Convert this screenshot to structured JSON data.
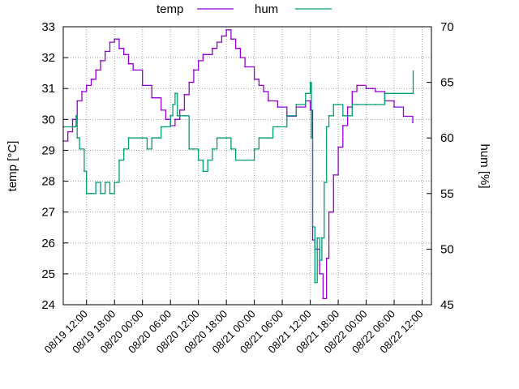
{
  "chart_data": {
    "type": "line",
    "legend_position": "top-center",
    "grid": true,
    "x_axis": {
      "label": "",
      "start": "08/19 07:00",
      "ticks": [
        "08/19 12:00",
        "08/19 18:00",
        "08/20 00:00",
        "08/20 06:00",
        "08/20 12:00",
        "08/20 18:00",
        "08/21 00:00",
        "08/21 06:00",
        "08/21 12:00",
        "08/21 18:00",
        "08/22 00:00",
        "08/22 06:00",
        "08/22 12:00"
      ]
    },
    "y_axis": {
      "label": "temp [°C]",
      "range": [
        24,
        33
      ],
      "ticks": [
        "24",
        "25",
        "26",
        "27",
        "28",
        "29",
        "30",
        "31",
        "32",
        "33"
      ]
    },
    "y2_axis": {
      "label": "hum [%]",
      "range": [
        45,
        70
      ],
      "ticks": [
        "45",
        "50",
        "55",
        "60",
        "65",
        "70"
      ]
    },
    "series": [
      {
        "name": "temp",
        "axis": "y",
        "color": "#9400d3",
        "points": [
          [
            "08/19 07:00",
            29.3
          ],
          [
            "08/19 08:00",
            29.6
          ],
          [
            "08/19 09:00",
            30.0
          ],
          [
            "08/19 10:00",
            30.6
          ],
          [
            "08/19 11:00",
            30.9
          ],
          [
            "08/19 12:00",
            31.1
          ],
          [
            "08/19 13:00",
            31.3
          ],
          [
            "08/19 14:00",
            31.6
          ],
          [
            "08/19 15:00",
            31.9
          ],
          [
            "08/19 16:00",
            32.2
          ],
          [
            "08/19 17:00",
            32.5
          ],
          [
            "08/19 18:00",
            32.6
          ],
          [
            "08/19 19:00",
            32.3
          ],
          [
            "08/19 20:00",
            32.1
          ],
          [
            "08/19 21:00",
            31.8
          ],
          [
            "08/19 22:00",
            31.6
          ],
          [
            "08/20 00:00",
            31.1
          ],
          [
            "08/20 02:00",
            30.7
          ],
          [
            "08/20 04:00",
            30.3
          ],
          [
            "08/20 05:00",
            30.0
          ],
          [
            "08/20 06:00",
            29.8
          ],
          [
            "08/20 07:00",
            30.0
          ],
          [
            "08/20 08:00",
            30.3
          ],
          [
            "08/20 09:00",
            30.8
          ],
          [
            "08/20 10:00",
            31.2
          ],
          [
            "08/20 11:00",
            31.6
          ],
          [
            "08/20 12:00",
            31.9
          ],
          [
            "08/20 13:00",
            32.1
          ],
          [
            "08/20 15:00",
            32.3
          ],
          [
            "08/20 16:00",
            32.5
          ],
          [
            "08/20 17:00",
            32.7
          ],
          [
            "08/20 18:00",
            32.9
          ],
          [
            "08/20 19:00",
            32.6
          ],
          [
            "08/20 20:00",
            32.3
          ],
          [
            "08/20 21:00",
            32.0
          ],
          [
            "08/20 22:00",
            31.7
          ],
          [
            "08/21 00:00",
            31.3
          ],
          [
            "08/21 01:00",
            31.1
          ],
          [
            "08/21 02:00",
            30.9
          ],
          [
            "08/21 03:00",
            30.6
          ],
          [
            "08/21 05:00",
            30.4
          ],
          [
            "08/21 07:00",
            30.1
          ],
          [
            "08/21 09:00",
            30.4
          ],
          [
            "08/21 11:00",
            30.6
          ],
          [
            "08/21 12:00",
            30.3
          ],
          [
            "08/21 12:30",
            26.1
          ],
          [
            "08/21 13:00",
            25.8
          ],
          [
            "08/21 14:00",
            25.0
          ],
          [
            "08/21 14:45",
            24.2
          ],
          [
            "08/21 15:30",
            25.5
          ],
          [
            "08/21 16:00",
            27.0
          ],
          [
            "08/21 17:00",
            28.2
          ],
          [
            "08/21 18:00",
            29.1
          ],
          [
            "08/21 19:00",
            29.8
          ],
          [
            "08/21 20:00",
            30.4
          ],
          [
            "08/21 21:00",
            30.9
          ],
          [
            "08/21 22:00",
            31.1
          ],
          [
            "08/22 00:00",
            31.0
          ],
          [
            "08/22 02:00",
            30.9
          ],
          [
            "08/22 04:00",
            30.6
          ],
          [
            "08/22 06:00",
            30.4
          ],
          [
            "08/22 08:00",
            30.1
          ],
          [
            "08/22 10:00",
            29.9
          ]
        ]
      },
      {
        "name": "hum",
        "axis": "y2",
        "color": "#009e73",
        "points": [
          [
            "08/19 07:00",
            61.0
          ],
          [
            "08/19 09:30",
            61.0
          ],
          [
            "08/19 09:45",
            62.0
          ],
          [
            "08/19 10:00",
            60.0
          ],
          [
            "08/19 10:30",
            59.0
          ],
          [
            "08/19 11:30",
            57.0
          ],
          [
            "08/19 12:00",
            55.0
          ],
          [
            "08/19 13:00",
            55.0
          ],
          [
            "08/19 14:00",
            56.0
          ],
          [
            "08/19 15:00",
            55.0
          ],
          [
            "08/19 16:00",
            56.0
          ],
          [
            "08/19 17:00",
            55.0
          ],
          [
            "08/19 18:00",
            56.0
          ],
          [
            "08/19 19:00",
            58.0
          ],
          [
            "08/19 20:00",
            59.0
          ],
          [
            "08/19 21:00",
            60.0
          ],
          [
            "08/20 00:00",
            60.0
          ],
          [
            "08/20 01:00",
            59.0
          ],
          [
            "08/20 02:00",
            60.0
          ],
          [
            "08/20 03:00",
            60.0
          ],
          [
            "08/20 04:00",
            61.0
          ],
          [
            "08/20 05:00",
            61.0
          ],
          [
            "08/20 06:00",
            62.0
          ],
          [
            "08/20 06:30",
            63.0
          ],
          [
            "08/20 07:00",
            64.0
          ],
          [
            "08/20 07:30",
            62.0
          ],
          [
            "08/20 08:00",
            62.0
          ],
          [
            "08/20 09:00",
            62.0
          ],
          [
            "08/20 10:00",
            59.0
          ],
          [
            "08/20 11:00",
            59.0
          ],
          [
            "08/20 12:00",
            58.0
          ],
          [
            "08/20 13:00",
            57.0
          ],
          [
            "08/20 14:00",
            58.0
          ],
          [
            "08/20 15:00",
            59.0
          ],
          [
            "08/20 16:00",
            60.0
          ],
          [
            "08/20 18:00",
            60.0
          ],
          [
            "08/20 19:00",
            59.0
          ],
          [
            "08/20 20:00",
            58.0
          ],
          [
            "08/20 22:00",
            58.0
          ],
          [
            "08/21 00:00",
            59.0
          ],
          [
            "08/21 01:00",
            60.0
          ],
          [
            "08/21 03:00",
            60.0
          ],
          [
            "08/21 04:00",
            61.0
          ],
          [
            "08/21 05:00",
            61.0
          ],
          [
            "08/21 07:00",
            62.0
          ],
          [
            "08/21 09:00",
            63.0
          ],
          [
            "08/21 11:00",
            64.0
          ],
          [
            "08/21 12:00",
            65.0
          ],
          [
            "08/21 12:15",
            60.0
          ],
          [
            "08/21 12:30",
            52.0
          ],
          [
            "08/21 13:00",
            47.0
          ],
          [
            "08/21 13:30",
            51.0
          ],
          [
            "08/21 14:00",
            49.0
          ],
          [
            "08/21 14:30",
            51.0
          ],
          [
            "08/21 15:00",
            56.0
          ],
          [
            "08/21 15:30",
            61.0
          ],
          [
            "08/21 16:00",
            62.0
          ],
          [
            "08/21 17:00",
            63.0
          ],
          [
            "08/21 18:00",
            63.0
          ],
          [
            "08/21 19:00",
            62.0
          ],
          [
            "08/21 20:00",
            62.0
          ],
          [
            "08/21 21:00",
            63.0
          ],
          [
            "08/21 22:00",
            63.0
          ],
          [
            "08/22 00:00",
            63.0
          ],
          [
            "08/22 02:00",
            63.0
          ],
          [
            "08/22 04:00",
            64.0
          ],
          [
            "08/22 06:00",
            64.0
          ],
          [
            "08/22 08:00",
            64.0
          ],
          [
            "08/22 10:00",
            64.0
          ],
          [
            "08/22 10:05",
            66.0
          ]
        ]
      }
    ]
  }
}
